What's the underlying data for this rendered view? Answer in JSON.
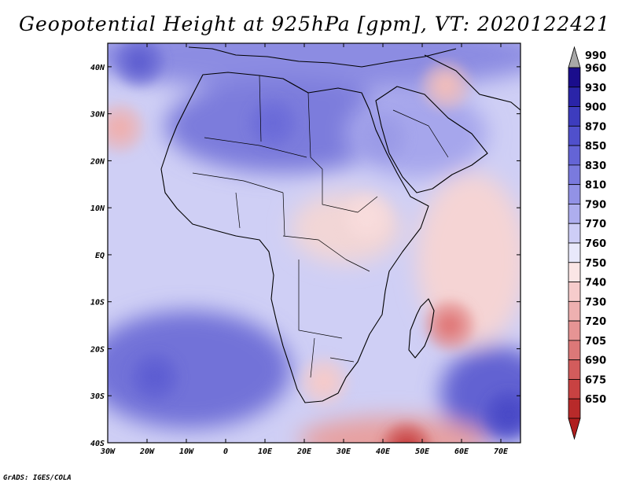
{
  "title": "Geopotential Height at 925hPa [gpm], VT: 2020122421",
  "credit": "GrADS: IGES/COLA",
  "map": {
    "variable": "Geopotential Height",
    "level": "925hPa",
    "units": "gpm",
    "valid_time": "2020122421",
    "lon_range": [
      -30,
      75
    ],
    "lat_range": [
      -40,
      45
    ],
    "lat_ticks": [
      {
        "value": 40,
        "label": "40N"
      },
      {
        "value": 30,
        "label": "30N"
      },
      {
        "value": 20,
        "label": "20N"
      },
      {
        "value": 10,
        "label": "10N"
      },
      {
        "value": 0,
        "label": "EQ"
      },
      {
        "value": -10,
        "label": "10S"
      },
      {
        "value": -20,
        "label": "20S"
      },
      {
        "value": -30,
        "label": "30S"
      },
      {
        "value": -40,
        "label": "40S"
      }
    ],
    "lon_ticks": [
      {
        "value": -30,
        "label": "30W"
      },
      {
        "value": -20,
        "label": "20W"
      },
      {
        "value": -10,
        "label": "10W"
      },
      {
        "value": 0,
        "label": "0"
      },
      {
        "value": 10,
        "label": "10E"
      },
      {
        "value": 20,
        "label": "20E"
      },
      {
        "value": 30,
        "label": "30E"
      },
      {
        "value": 40,
        "label": "40E"
      },
      {
        "value": 50,
        "label": "50E"
      },
      {
        "value": 60,
        "label": "60E"
      },
      {
        "value": 70,
        "label": "70E"
      }
    ]
  },
  "colorbar": {
    "top_label": "990",
    "levels": [
      {
        "label": "960",
        "color": "#1a0d8c"
      },
      {
        "label": "930",
        "color": "#2a24a8"
      },
      {
        "label": "900",
        "color": "#3d3cbe"
      },
      {
        "label": "870",
        "color": "#5050cc"
      },
      {
        "label": "850",
        "color": "#6464d6"
      },
      {
        "label": "830",
        "color": "#7a7ade"
      },
      {
        "label": "810",
        "color": "#9292e6"
      },
      {
        "label": "790",
        "color": "#aeaeee"
      },
      {
        "label": "770",
        "color": "#cdcdf6"
      },
      {
        "label": "760",
        "color": "#e8e8fb"
      },
      {
        "label": "750",
        "color": "#fbe6e6"
      },
      {
        "label": "740",
        "color": "#f6cccc"
      },
      {
        "label": "730",
        "color": "#eeb0b0"
      },
      {
        "label": "720",
        "color": "#e69494"
      },
      {
        "label": "705",
        "color": "#dc7878"
      },
      {
        "label": "690",
        "color": "#d25c5c"
      },
      {
        "label": "675",
        "color": "#c84242"
      },
      {
        "label": "650",
        "color": "#b82a2a"
      }
    ],
    "top_arrow_color": "#a8a8a8",
    "bottom_arrow_color": "#b01e1e"
  },
  "fields": {
    "background": "#cfcff5",
    "highs": [
      {
        "name": "south-atlantic-high",
        "lon": -18,
        "lat": -26,
        "color": "#5d5dd2"
      },
      {
        "name": "saharan-high",
        "lon": 12,
        "lat": 28,
        "color": "#6b6bd8"
      },
      {
        "name": "indian-ocean-high-se",
        "lon": 72,
        "lat": -34,
        "color": "#4a4ac6"
      },
      {
        "name": "north-atlantic-high",
        "lon": -22,
        "lat": 41,
        "color": "#6060d0"
      },
      {
        "name": "arabian-high",
        "lon": 40,
        "lat": 25,
        "color": "#9a9ae6"
      }
    ],
    "lows": [
      {
        "name": "madagascar-low",
        "lon": 57,
        "lat": -15,
        "color": "#e07a7a"
      },
      {
        "name": "kalahari-low",
        "lon": 25,
        "lat": -27,
        "color": "#f4caca"
      },
      {
        "name": "east-africa-low",
        "lon": 36,
        "lat": 8,
        "color": "#f8dcdc"
      },
      {
        "name": "iran-low",
        "lon": 56,
        "lat": 36,
        "color": "#eebcbc"
      },
      {
        "name": "southern-ocean-trough",
        "lon": 46,
        "lat": -41,
        "color": "#c84242"
      },
      {
        "name": "azores-low",
        "lon": -27,
        "lat": 27,
        "color": "#eeb0b0"
      }
    ]
  }
}
